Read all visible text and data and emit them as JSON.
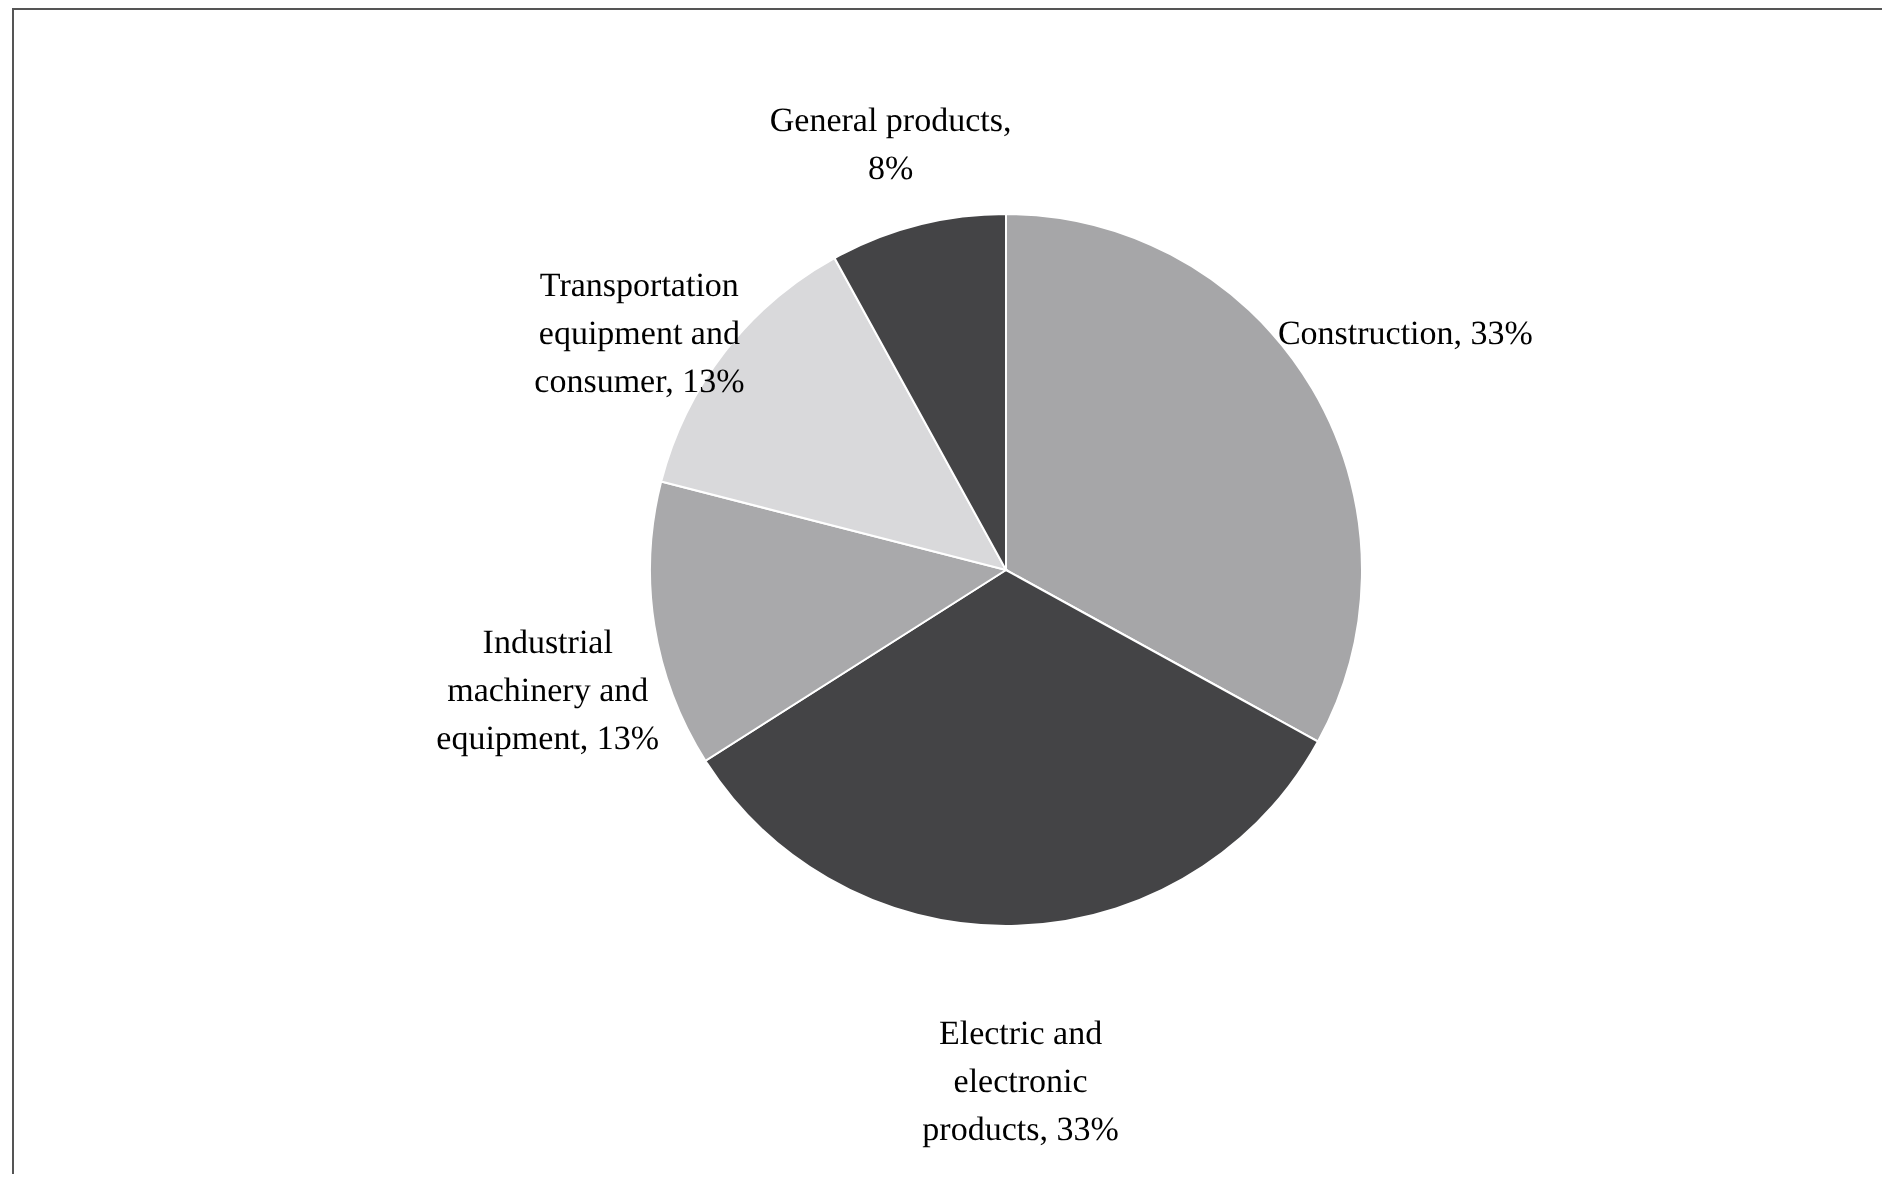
{
  "chart_data": {
    "type": "pie",
    "categories": [
      "Construction, 33%",
      "Electric and electronic products, 33%",
      "Industrial machinery and equipment, 13%",
      "Transportation equipment and consumer, 13%",
      "General products, 8%"
    ],
    "values": [
      33,
      33,
      13,
      13,
      8
    ],
    "colors": [
      "#a6a6a8",
      "#444446",
      "#a9a9ab",
      "#d9d9db",
      "#444446"
    ]
  }
}
